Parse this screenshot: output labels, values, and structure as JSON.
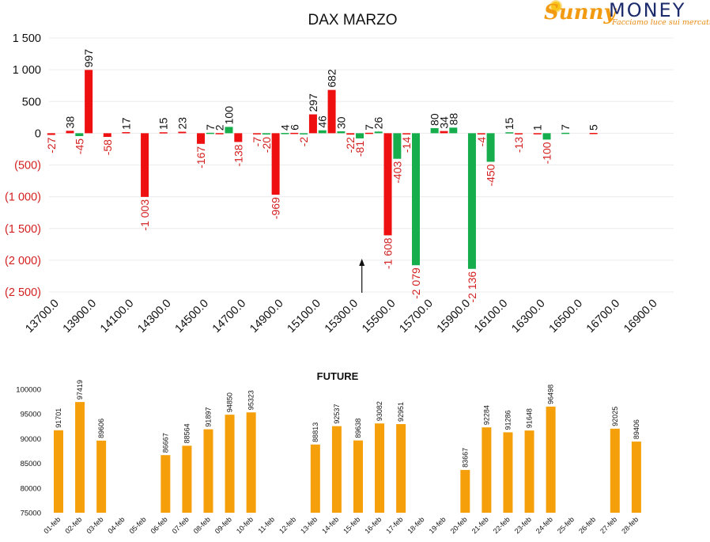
{
  "logo": {
    "word1": "Sunny",
    "word2": "MONEY",
    "tagline": "Facciamo luce sui mercati",
    "sun_icon": "sun-icon"
  },
  "colors": {
    "call": "#ee1010",
    "put": "#16ad4d",
    "future": "#f5a00a",
    "negative_label": "#d42020",
    "text": "#111111"
  },
  "chart_data": [
    {
      "type": "bar",
      "title": "DAX MARZO",
      "x_tick_labels": [
        "13700.0",
        "13900.0",
        "14100.0",
        "14300.0",
        "14500.0",
        "14700.0",
        "14900.0",
        "15100.0",
        "15300.0",
        "15500.0",
        "15700.0",
        "15900.0",
        "16100.0",
        "16300.0",
        "16500.0",
        "16700.0",
        "16900.0"
      ],
      "y_tick_labels": [
        "1 500",
        "1 000",
        "500",
        "0",
        "(500)",
        "(1 000)",
        "(1 500)",
        "(2 000)",
        "(2 500)"
      ],
      "ylim": [
        -2500,
        1500
      ],
      "y_ticks": [
        1500,
        1000,
        500,
        0,
        -500,
        -1000,
        -1500,
        -2000,
        -2500
      ],
      "grid": true,
      "marker_arrow_at_strike": 15500,
      "series": [
        {
          "color_key": "call",
          "points": [
            {
              "x": 13750,
              "value": -27,
              "label": "-27"
            },
            {
              "x": 13850,
              "value": 38,
              "label": "38"
            },
            {
              "x": 13950,
              "value": 997,
              "label": "997"
            },
            {
              "x": 14050,
              "value": -58,
              "label": "-58"
            },
            {
              "x": 14150,
              "value": 17,
              "label": "17"
            },
            {
              "x": 14250,
              "value": -1003,
              "label": "-1 003"
            },
            {
              "x": 14350,
              "value": 15,
              "label": "15"
            },
            {
              "x": 14450,
              "value": 23,
              "label": "23"
            },
            {
              "x": 14550,
              "value": -167,
              "label": "-167"
            },
            {
              "x": 14650,
              "value": 2,
              "label": "2"
            },
            {
              "x": 14750,
              "value": -138,
              "label": "-138"
            },
            {
              "x": 14850,
              "value": -7,
              "label": "-7"
            },
            {
              "x": 14950,
              "value": -969,
              "label": "-969"
            },
            {
              "x": 15050,
              "value": 6,
              "label": "6"
            },
            {
              "x": 15150,
              "value": 297,
              "label": "297"
            },
            {
              "x": 15250,
              "value": 682,
              "label": "682"
            },
            {
              "x": 15350,
              "value": -22,
              "label": "-22"
            },
            {
              "x": 15450,
              "value": 7,
              "label": "7"
            },
            {
              "x": 15550,
              "value": -1608,
              "label": "-1 608"
            },
            {
              "x": 15650,
              "value": -14,
              "label": "-14"
            },
            {
              "x": 15850,
              "value": 34,
              "label": "34"
            },
            {
              "x": 16050,
              "value": -4,
              "label": "-4"
            },
            {
              "x": 16250,
              "value": -13,
              "label": "-13"
            },
            {
              "x": 16350,
              "value": 1,
              "label": "1"
            },
            {
              "x": 16650,
              "value": 5,
              "label": "5"
            }
          ]
        },
        {
          "color_key": "put",
          "points": [
            {
              "x": 13900,
              "value": -45,
              "label": "-45"
            },
            {
              "x": 14600,
              "value": 7,
              "label": "7"
            },
            {
              "x": 14700,
              "value": 100,
              "label": "100"
            },
            {
              "x": 14900,
              "value": -20,
              "label": "-20"
            },
            {
              "x": 15000,
              "value": 4,
              "label": "4"
            },
            {
              "x": 15100,
              "value": -2,
              "label": "-2"
            },
            {
              "x": 15200,
              "value": 46,
              "label": "46"
            },
            {
              "x": 15300,
              "value": 30,
              "label": "30"
            },
            {
              "x": 15400,
              "value": -81,
              "label": "-81"
            },
            {
              "x": 15500,
              "value": 26,
              "label": "26"
            },
            {
              "x": 15600,
              "value": -403,
              "label": "-403"
            },
            {
              "x": 15700,
              "value": -2079,
              "label": "-2 079"
            },
            {
              "x": 15800,
              "value": 80,
              "label": "80"
            },
            {
              "x": 15900,
              "value": 88,
              "label": "88"
            },
            {
              "x": 16000,
              "value": -2136,
              "label": "-2 136"
            },
            {
              "x": 16100,
              "value": -450,
              "label": "-450"
            },
            {
              "x": 16200,
              "value": 15,
              "label": "15"
            },
            {
              "x": 16400,
              "value": -100,
              "label": "-100"
            },
            {
              "x": 16500,
              "value": 7,
              "label": "7"
            }
          ]
        }
      ]
    },
    {
      "type": "bar",
      "title": "FUTURE",
      "categories": [
        "01-feb",
        "02-feb",
        "03-feb",
        "04-feb",
        "05-feb",
        "06-feb",
        "07-feb",
        "08-feb",
        "09-feb",
        "10-feb",
        "11-feb",
        "12-feb",
        "13-feb",
        "14-feb",
        "15-feb",
        "16-feb",
        "17-feb",
        "18-feb",
        "19-feb",
        "20-feb",
        "21-feb",
        "22-feb",
        "23-feb",
        "24-feb",
        "25-feb",
        "26-feb",
        "27-feb",
        "28-feb"
      ],
      "values": [
        91701,
        97419,
        89606,
        null,
        null,
        86667,
        88564,
        91897,
        94850,
        95323,
        null,
        null,
        88813,
        92537,
        89638,
        93082,
        92951,
        null,
        null,
        83667,
        92284,
        91286,
        91648,
        96498,
        null,
        null,
        92025,
        89406
      ],
      "y_ticks": [
        100000,
        95000,
        90000,
        85000,
        80000,
        75000
      ],
      "ylim": [
        75000,
        100000
      ],
      "grid": false
    }
  ]
}
